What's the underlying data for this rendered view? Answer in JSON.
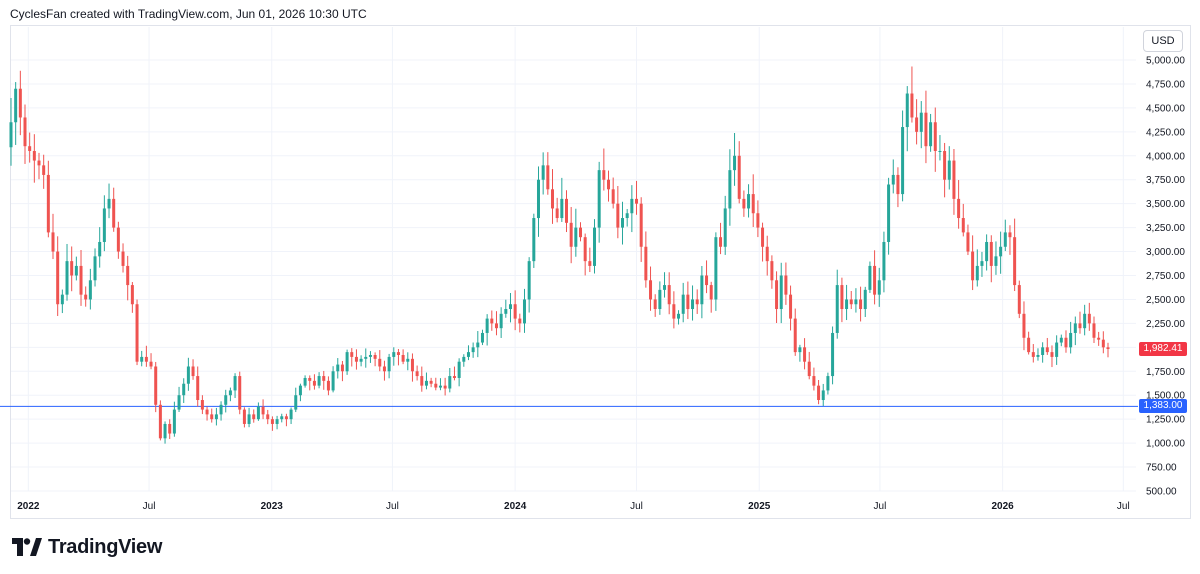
{
  "header": {
    "attribution": "CyclesFan created with TradingView.com, Jun 01, 2026 10:30 UTC"
  },
  "toolbar": {
    "currency_label": "USD"
  },
  "brand": {
    "name": "TradingView"
  },
  "colors": {
    "up": "#26a69a",
    "down": "#ef5350",
    "hline": "#2962ff",
    "grid": "#f0f3fa"
  },
  "chart_data": {
    "type": "candlestick",
    "interval": "weekly",
    "y_axis": {
      "min": 500,
      "max": 5000,
      "side": "right",
      "ticks": [
        {
          "value": 5000,
          "label": "5,000.00"
        },
        {
          "value": 4750,
          "label": "4,750.00"
        },
        {
          "value": 4500,
          "label": "4,500.00"
        },
        {
          "value": 4250,
          "label": "4,250.00"
        },
        {
          "value": 4000,
          "label": "4,000.00"
        },
        {
          "value": 3750,
          "label": "3,750.00"
        },
        {
          "value": 3500,
          "label": "3,500.00"
        },
        {
          "value": 3250,
          "label": "3,250.00"
        },
        {
          "value": 3000,
          "label": "3,000.00"
        },
        {
          "value": 2750,
          "label": "2,750.00"
        },
        {
          "value": 2500,
          "label": "2,500.00"
        },
        {
          "value": 2250,
          "label": "2,250.00"
        },
        {
          "value": 2000,
          "label": "2,000.00"
        },
        {
          "value": 1750,
          "label": "1,750.00"
        },
        {
          "value": 1500,
          "label": "1,500.00"
        },
        {
          "value": 1250,
          "label": "1,250.00"
        },
        {
          "value": 1000,
          "label": "1,000.00"
        },
        {
          "value": 750,
          "label": "750.00"
        },
        {
          "value": 500,
          "label": "500.00"
        }
      ]
    },
    "x_axis": {
      "start": "2021-12-06",
      "end": "2026-07-20",
      "ticks": [
        {
          "date": "2022-01-01",
          "label": "2022",
          "bold": true
        },
        {
          "date": "2022-07-01",
          "label": "Jul",
          "bold": false
        },
        {
          "date": "2023-01-01",
          "label": "2023",
          "bold": true
        },
        {
          "date": "2023-07-01",
          "label": "Jul",
          "bold": false
        },
        {
          "date": "2024-01-01",
          "label": "2024",
          "bold": true
        },
        {
          "date": "2024-07-01",
          "label": "Jul",
          "bold": false
        },
        {
          "date": "2025-01-01",
          "label": "2025",
          "bold": true
        },
        {
          "date": "2025-07-01",
          "label": "Jul",
          "bold": false
        },
        {
          "date": "2026-01-01",
          "label": "2026",
          "bold": true
        },
        {
          "date": "2026-07-01",
          "label": "Jul",
          "bold": false
        }
      ]
    },
    "current_price": {
      "value": 1982.41,
      "label": "1,982.41",
      "color": "#f23645"
    },
    "horizontal_line": {
      "value": 1383,
      "label": "1,383.00",
      "color": "#2962ff"
    },
    "first_week": "2021-12-06",
    "closes": [
      4350,
      4700,
      4400,
      4100,
      4050,
      3950,
      3900,
      3800,
      3200,
      3000,
      2450,
      2550,
      2900,
      2750,
      2850,
      2550,
      2500,
      2700,
      2950,
      3100,
      3450,
      3550,
      3250,
      3000,
      2850,
      2650,
      2450,
      1850,
      1900,
      1850,
      1800,
      1400,
      1050,
      1200,
      1100,
      1350,
      1500,
      1620,
      1800,
      1700,
      1450,
      1350,
      1300,
      1250,
      1300,
      1400,
      1500,
      1550,
      1700,
      1350,
      1200,
      1300,
      1250,
      1380,
      1300,
      1250,
      1200,
      1250,
      1280,
      1250,
      1350,
      1500,
      1600,
      1680,
      1650,
      1600,
      1700,
      1650,
      1550,
      1750,
      1820,
      1750,
      1950,
      1900,
      1850,
      1880,
      1900,
      1920,
      1880,
      1800,
      1750,
      1900,
      1950,
      1920,
      1850,
      1880,
      1750,
      1700,
      1600,
      1650,
      1620,
      1580,
      1600,
      1570,
      1700,
      1680,
      1850,
      1900,
      1950,
      2000,
      2050,
      2150,
      2300,
      2250,
      2200,
      2350,
      2400,
      2450,
      2300,
      2250,
      2500,
      2900,
      3350,
      3750,
      3900,
      3650,
      3450,
      3350,
      3550,
      3300,
      3050,
      3250,
      3150,
      2900,
      2850,
      3250,
      3850,
      3750,
      3650,
      3500,
      3250,
      3350,
      3400,
      3550,
      3500,
      3050,
      2700,
      2500,
      2400,
      2600,
      2650,
      2450,
      2300,
      2350,
      2550,
      2400,
      2500,
      2450,
      2750,
      2650,
      2500,
      3150,
      3050,
      3450,
      3850,
      4000,
      3550,
      3450,
      3600,
      3400,
      3250,
      3050,
      2900,
      2700,
      2400,
      2750,
      2550,
      2300,
      1950,
      2000,
      1850,
      1700,
      1600,
      1450,
      1550,
      1700,
      2150,
      2650,
      2400,
      2500,
      2450,
      2500,
      2400,
      2600,
      2850,
      2550,
      2700,
      3100,
      3700,
      3800,
      3600,
      4300,
      4650,
      4400,
      4250,
      4450,
      4100,
      4350,
      4050,
      4050,
      3750,
      3950,
      3550,
      3350,
      3200,
      3000,
      2700,
      2850,
      2900,
      3100,
      2850,
      2950,
      3050,
      3200,
      3150,
      2650,
      2350,
      2100,
      1950,
      1900,
      1920,
      2000,
      1950,
      1900,
      2050,
      2100,
      2000,
      2150,
      2250,
      2200,
      2350,
      2250,
      2100,
      2080,
      2000,
      1982.41
    ]
  }
}
